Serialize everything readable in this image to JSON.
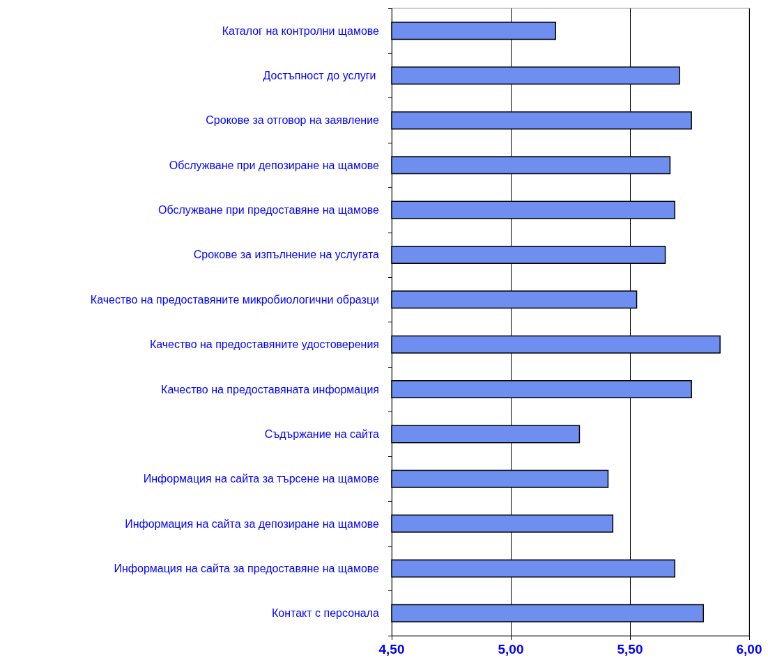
{
  "chart_data": {
    "type": "bar",
    "orientation": "horizontal",
    "categories": [
      "Каталог на контролни щамове",
      "Достъпност до услуги ",
      "Срокове за отговор на заявление",
      "Обслужване при депозиране на щамове",
      "Обслужване при предоставяне на щамове",
      "Срокове за изпълнение на услугата",
      "Качество на предоставяните микробиологични образци",
      "Качество на предоставяните удостоверения",
      "Качество на предоставяната информация",
      "Съдържание на сайта",
      "Информация на сайта за търсене на щамове",
      "Информация на сайта за депозиране на щамове",
      "Информация на сайта за предоставяне на щамове",
      "Контакт с персонала"
    ],
    "values": [
      5.19,
      5.71,
      5.76,
      5.67,
      5.69,
      5.65,
      5.53,
      5.88,
      5.76,
      5.29,
      5.41,
      5.43,
      5.69,
      5.81
    ],
    "color": "#6f8ff0",
    "xlim": [
      4.5,
      6.0
    ],
    "xticks": [
      {
        "value": 4.5,
        "label": "4,50"
      },
      {
        "value": 5.0,
        "label": "5,00"
      },
      {
        "value": 5.5,
        "label": "5,50"
      },
      {
        "value": 6.0,
        "label": "6,00"
      }
    ],
    "grid": "x"
  }
}
